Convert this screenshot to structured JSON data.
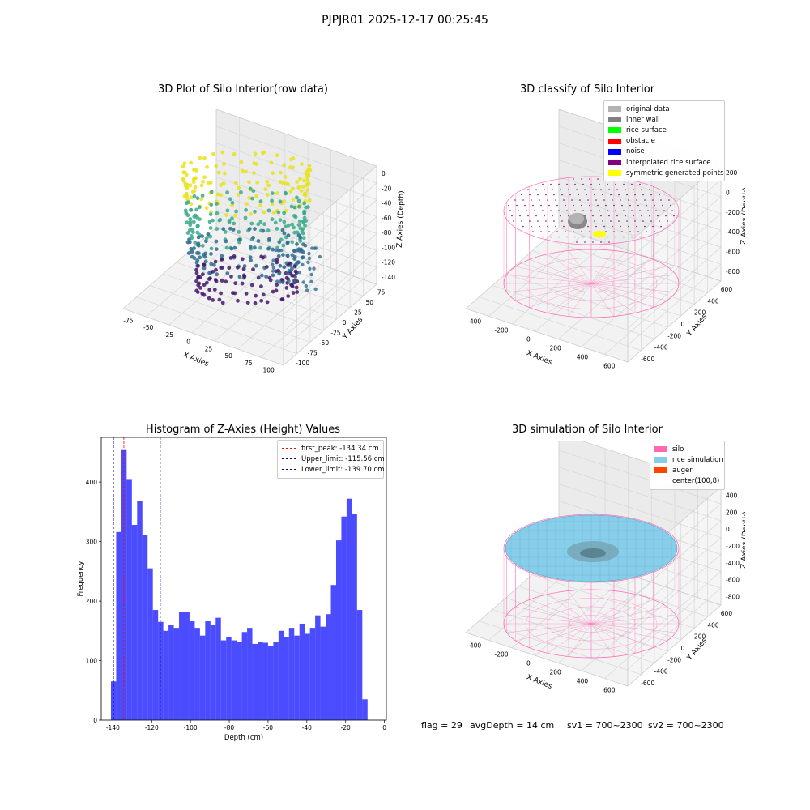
{
  "figure": {
    "suptitle": "PJPJR01 2025-12-17 00:25:45"
  },
  "panels": {
    "raw": {
      "title": "3D Plot of Silo Interior(row data)",
      "xlabel": "X Axies",
      "ylabel": "Y Axies",
      "zlabel": "Z Axies (Depth)",
      "xticks": [
        "-75",
        "-50",
        "-25",
        "0",
        "25",
        "50",
        "75",
        "100"
      ],
      "yticks": [
        "75",
        "50",
        "25",
        "0",
        "-25",
        "-50",
        "-75",
        "-100"
      ],
      "zticks": [
        "0",
        "-20",
        "-40",
        "-60",
        "-80",
        "-100",
        "-120",
        "-140"
      ],
      "colors": {
        "top": "#e8e31c",
        "mid": "#3aa98b",
        "low": "#2f6b8e",
        "bottom": "#44196b"
      }
    },
    "classify": {
      "title": "3D classify of Silo Interior",
      "xlabel": "X Axies",
      "ylabel": "Y Axies",
      "zlabel": "Z Axies (Depth)",
      "xticks": [
        "-400",
        "-200",
        "0",
        "200",
        "400",
        "600"
      ],
      "yticks": [
        "600",
        "400",
        "200",
        "0",
        "-200",
        "-400",
        "-600"
      ],
      "zticks": [
        "200",
        "0",
        "-200",
        "-400",
        "-600",
        "-800"
      ],
      "legend": [
        {
          "label": "original data",
          "color": "#b3b3b3"
        },
        {
          "label": "inner wall",
          "color": "#808080"
        },
        {
          "label": "rice surface",
          "color": "#00ff00"
        },
        {
          "label": "obstacle",
          "color": "#ff0000"
        },
        {
          "label": "noise",
          "color": "#0000ff"
        },
        {
          "label": "interpolated rice surface",
          "color": "#800080"
        },
        {
          "label": "symmetric generated points",
          "color": "#ffff00"
        }
      ]
    },
    "histogram": {
      "title": "Histogram of Z-Axies (Height) Values",
      "xlabel": "Depth (cm)",
      "ylabel": "Frequency",
      "xticks": [
        -140,
        -120,
        -100,
        -80,
        -60,
        -40,
        -20,
        0
      ],
      "yticks": [
        0,
        100,
        200,
        300,
        400
      ],
      "legend": [
        {
          "label": "first_peak: -134.34 cm",
          "color": "#ff0000"
        },
        {
          "label": "Upper_limit: -115.56 cm",
          "color": "#00008b"
        },
        {
          "label": "Lower_limit: -139.70 cm",
          "color": "#00008b"
        }
      ]
    },
    "simulation": {
      "title": "3D simulation of Silo Interior",
      "xlabel": "X Axies",
      "ylabel": "Y Axies",
      "zlabel": "Z Axies (Depth)",
      "xticks": [
        "-400",
        "-200",
        "0",
        "200",
        "400",
        "600"
      ],
      "yticks": [
        "600",
        "400",
        "200",
        "0",
        "-200",
        "-400",
        "-600"
      ],
      "zticks": [
        "400",
        "200",
        "0",
        "-200",
        "-400",
        "-600",
        "-800"
      ],
      "legend": [
        {
          "label": "silo",
          "color": "#ff69b4"
        },
        {
          "label": "rice simulation",
          "color": "#87ceeb"
        },
        {
          "label": "auger",
          "color": "#ff4500"
        },
        {
          "label": "center(100,8)",
          "color": "#ffffff"
        }
      ],
      "colors": {
        "silo": "#ff69b4",
        "rice": "#87ceeb",
        "auger": "#ff4500"
      }
    }
  },
  "status": {
    "flag": "flag = 29",
    "avg_depth": "avgDepth = 14 cm",
    "sv1": "sv1 = 700~2300",
    "sv2": "sv2 = 700~2300"
  },
  "chart_data": {
    "type": "bar",
    "title": "Histogram of Z-Axies (Height) Values",
    "xlabel": "Depth (cm)",
    "ylabel": "Frequency",
    "xlim": [
      -146,
      1
    ],
    "ylim": [
      0,
      475
    ],
    "bin_start": -141,
    "bin_width": 2.7,
    "values": [
      65,
      316,
      455,
      405,
      328,
      368,
      311,
      255,
      185,
      165,
      150,
      160,
      155,
      182,
      182,
      166,
      155,
      142,
      166,
      160,
      172,
      134,
      140,
      134,
      132,
      148,
      155,
      128,
      132,
      130,
      125,
      132,
      150,
      140,
      155,
      142,
      162,
      145,
      155,
      176,
      157,
      178,
      227,
      302,
      342,
      372,
      347,
      185,
      35
    ],
    "bar_color": "#0000ff",
    "vlines": [
      {
        "label": "first_peak: -134.34 cm",
        "x": -134.34,
        "color": "#ff0000"
      },
      {
        "label": "Upper_limit: -115.56 cm",
        "x": -115.56,
        "color": "#00008b"
      },
      {
        "label": "Lower_limit: -139.70 cm",
        "x": -139.7,
        "color": "#00008b"
      }
    ],
    "legend_position": "top-right",
    "grid": false
  }
}
